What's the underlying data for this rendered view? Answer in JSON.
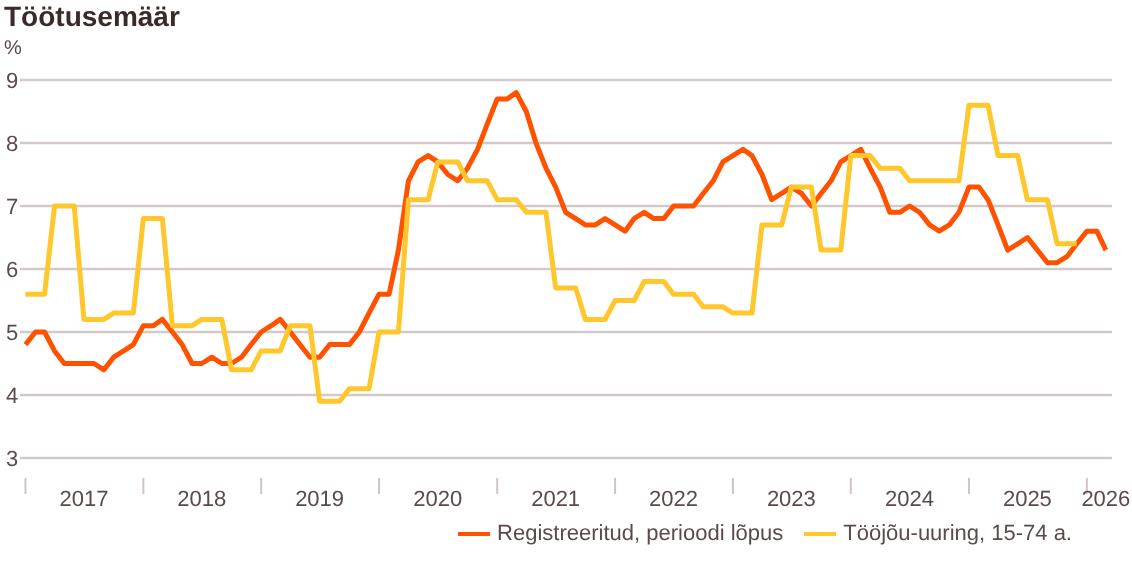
{
  "chart_data": {
    "type": "line",
    "title": "Töötusemäär",
    "ylabel": "%",
    "x": [
      "2017-01",
      "2017-02",
      "2017-03",
      "2017-04",
      "2017-05",
      "2017-06",
      "2017-07",
      "2017-08",
      "2017-09",
      "2017-10",
      "2017-11",
      "2017-12",
      "2018-01",
      "2018-02",
      "2018-03",
      "2018-04",
      "2018-05",
      "2018-06",
      "2018-07",
      "2018-08",
      "2018-09",
      "2018-10",
      "2018-11",
      "2018-12",
      "2019-01",
      "2019-02",
      "2019-03",
      "2019-04",
      "2019-05",
      "2019-06",
      "2019-07",
      "2019-08",
      "2019-09",
      "2019-10",
      "2019-11",
      "2019-12",
      "2020-01",
      "2020-02",
      "2020-03",
      "2020-04",
      "2020-05",
      "2020-06",
      "2020-07",
      "2020-08",
      "2020-09",
      "2020-10",
      "2020-11",
      "2020-12",
      "2021-01",
      "2021-02",
      "2021-03",
      "2021-04",
      "2021-05",
      "2021-06",
      "2021-07",
      "2021-08",
      "2021-09",
      "2021-10",
      "2021-11",
      "2021-12",
      "2022-01",
      "2022-02",
      "2022-03",
      "2022-04",
      "2022-05",
      "2022-06",
      "2022-07",
      "2022-08",
      "2022-09",
      "2022-10",
      "2022-11",
      "2022-12",
      "2023-01",
      "2023-02",
      "2023-03",
      "2023-04",
      "2023-05",
      "2023-06",
      "2023-07",
      "2023-08",
      "2023-09",
      "2023-10",
      "2023-11",
      "2023-12",
      "2024-01",
      "2024-02",
      "2024-03",
      "2024-04",
      "2024-05",
      "2024-06",
      "2024-07",
      "2024-08",
      "2024-09",
      "2024-10",
      "2024-11",
      "2024-12",
      "2025-01",
      "2025-02",
      "2025-03",
      "2025-04",
      "2025-05",
      "2025-06",
      "2025-07",
      "2025-08",
      "2025-09",
      "2025-10",
      "2025-11",
      "2025-12",
      "2026-01",
      "2026-02",
      "2026-03"
    ],
    "series": [
      {
        "name": "Registreeritud, perioodi lõpus",
        "color": "#ff5200",
        "values": [
          4.8,
          5.0,
          5.0,
          4.7,
          4.5,
          4.5,
          4.5,
          4.5,
          4.4,
          4.6,
          4.7,
          4.8,
          5.1,
          5.1,
          5.2,
          5.0,
          4.8,
          4.5,
          4.5,
          4.6,
          4.5,
          4.5,
          4.6,
          4.8,
          5.0,
          5.1,
          5.2,
          5.0,
          4.8,
          4.6,
          4.6,
          4.8,
          4.8,
          4.8,
          5.0,
          5.3,
          5.6,
          5.6,
          6.3,
          7.4,
          7.7,
          7.8,
          7.7,
          7.5,
          7.4,
          7.6,
          7.9,
          8.3,
          8.7,
          8.7,
          8.8,
          8.5,
          8.0,
          7.6,
          7.3,
          6.9,
          6.8,
          6.7,
          6.7,
          6.8,
          6.7,
          6.6,
          6.8,
          6.9,
          6.8,
          6.8,
          7.0,
          7.0,
          7.0,
          7.2,
          7.4,
          7.7,
          7.8,
          7.9,
          7.8,
          7.5,
          7.1,
          7.2,
          7.3,
          7.2,
          7.0,
          7.2,
          7.4,
          7.7,
          7.8,
          7.9,
          7.6,
          7.3,
          6.9,
          6.9,
          7.0,
          6.9,
          6.7,
          6.6,
          6.7,
          6.9,
          7.3,
          7.3,
          7.1,
          6.7,
          6.3,
          6.4,
          6.5,
          6.3,
          6.1,
          6.1,
          6.2,
          6.4,
          6.6,
          6.6,
          6.3
        ]
      },
      {
        "name": "Tööjõu-uuring, 15-74 a.",
        "color": "#ffc72c",
        "values": [
          5.6,
          5.6,
          5.6,
          7.0,
          7.0,
          7.0,
          5.2,
          5.2,
          5.2,
          5.3,
          5.3,
          5.3,
          6.8,
          6.8,
          6.8,
          5.1,
          5.1,
          5.1,
          5.2,
          5.2,
          5.2,
          4.4,
          4.4,
          4.4,
          4.7,
          4.7,
          4.7,
          5.1,
          5.1,
          5.1,
          3.9,
          3.9,
          3.9,
          4.1,
          4.1,
          4.1,
          5.0,
          5.0,
          5.0,
          7.1,
          7.1,
          7.1,
          7.7,
          7.7,
          7.7,
          7.4,
          7.4,
          7.4,
          7.1,
          7.1,
          7.1,
          6.9,
          6.9,
          6.9,
          5.7,
          5.7,
          5.7,
          5.2,
          5.2,
          5.2,
          5.5,
          5.5,
          5.5,
          5.8,
          5.8,
          5.8,
          5.6,
          5.6,
          5.6,
          5.4,
          5.4,
          5.4,
          5.3,
          5.3,
          5.3,
          6.7,
          6.7,
          6.7,
          7.3,
          7.3,
          7.3,
          6.3,
          6.3,
          6.3,
          7.8,
          7.8,
          7.8,
          7.6,
          7.6,
          7.6,
          7.4,
          7.4,
          7.4,
          7.4,
          7.4,
          7.4,
          8.6,
          8.6,
          8.6,
          7.8,
          7.8,
          7.8,
          7.1,
          7.1,
          7.1,
          6.4,
          6.4,
          6.4,
          null,
          null,
          null
        ]
      }
    ],
    "xlim": [
      "2016-12-15",
      "2026-03-20"
    ],
    "xticks": [
      {
        "value": "2017-01",
        "label": null
      },
      {
        "value": "2017-07",
        "label": "2017"
      },
      {
        "value": "2018-01",
        "label": null
      },
      {
        "value": "2018-07",
        "label": "2018"
      },
      {
        "value": "2019-01",
        "label": null
      },
      {
        "value": "2019-07",
        "label": "2019"
      },
      {
        "value": "2020-01",
        "label": null
      },
      {
        "value": "2020-07",
        "label": "2020"
      },
      {
        "value": "2021-01",
        "label": null
      },
      {
        "value": "2021-07",
        "label": "2021"
      },
      {
        "value": "2022-01",
        "label": null
      },
      {
        "value": "2022-07",
        "label": "2022"
      },
      {
        "value": "2023-01",
        "label": null
      },
      {
        "value": "2023-07",
        "label": "2023"
      },
      {
        "value": "2024-01",
        "label": null
      },
      {
        "value": "2024-07",
        "label": "2024"
      },
      {
        "value": "2025-01",
        "label": null
      },
      {
        "value": "2025-07",
        "label": "2025"
      },
      {
        "value": "2026-01",
        "label": null
      },
      {
        "value": "2026-03",
        "label": "2026"
      }
    ],
    "ylim": [
      3,
      9
    ],
    "yticks": [
      3,
      4,
      5,
      6,
      7,
      8,
      9
    ],
    "grid": "y",
    "legend": "bottom right",
    "line_style": "solid"
  }
}
